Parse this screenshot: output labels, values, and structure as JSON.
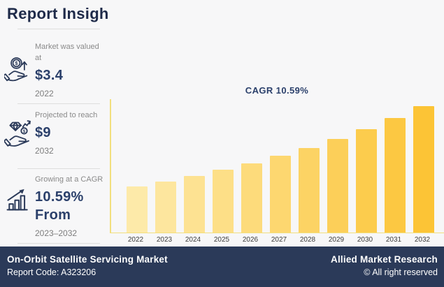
{
  "header": {
    "title": "Report Insigh"
  },
  "colors": {
    "page_bg": "#f7f7f8",
    "navy": "#1e2a49",
    "value_navy": "#2b406b",
    "label_gray": "#8a8a8a",
    "divider": "#dedede",
    "axis_yellow": "#f2df7d",
    "footer_bg": "#2b3a59",
    "bar_color_start": "#fdeaa9",
    "bar_color_end": "#fcc436"
  },
  "stats": [
    {
      "icon": "hand-coin-arrow-icon",
      "label": "Market was valued at",
      "value": "$3.4",
      "period": "2022"
    },
    {
      "icon": "hand-diamond-icon",
      "label": "Projected to reach",
      "value": "$9",
      "period": "2032"
    },
    {
      "icon": "growth-bars-arrow-icon",
      "label": "Growing at a CAGR",
      "value": "10.59%",
      "value2": "From",
      "period": "2023–2032"
    }
  ],
  "chart_data": {
    "type": "bar",
    "annotation": "CAGR 10.59%",
    "categories": [
      "2022",
      "2023",
      "2024",
      "2025",
      "2026",
      "2027",
      "2028",
      "2029",
      "2030",
      "2031",
      "2032"
    ],
    "values": [
      3.4,
      3.76,
      4.16,
      4.6,
      5.09,
      5.62,
      6.22,
      6.88,
      7.6,
      8.41,
      9.3
    ],
    "ylim": [
      0,
      9.8
    ],
    "grid": false,
    "legend": false,
    "bar_color_start": "#fdeaa9",
    "bar_color_end": "#fcc436"
  },
  "footer": {
    "title": "On-Orbit Satellite Servicing Market",
    "report_code": "Report Code: A323206",
    "brand": "Allied Market Research",
    "copyright": "© All right reserved"
  }
}
